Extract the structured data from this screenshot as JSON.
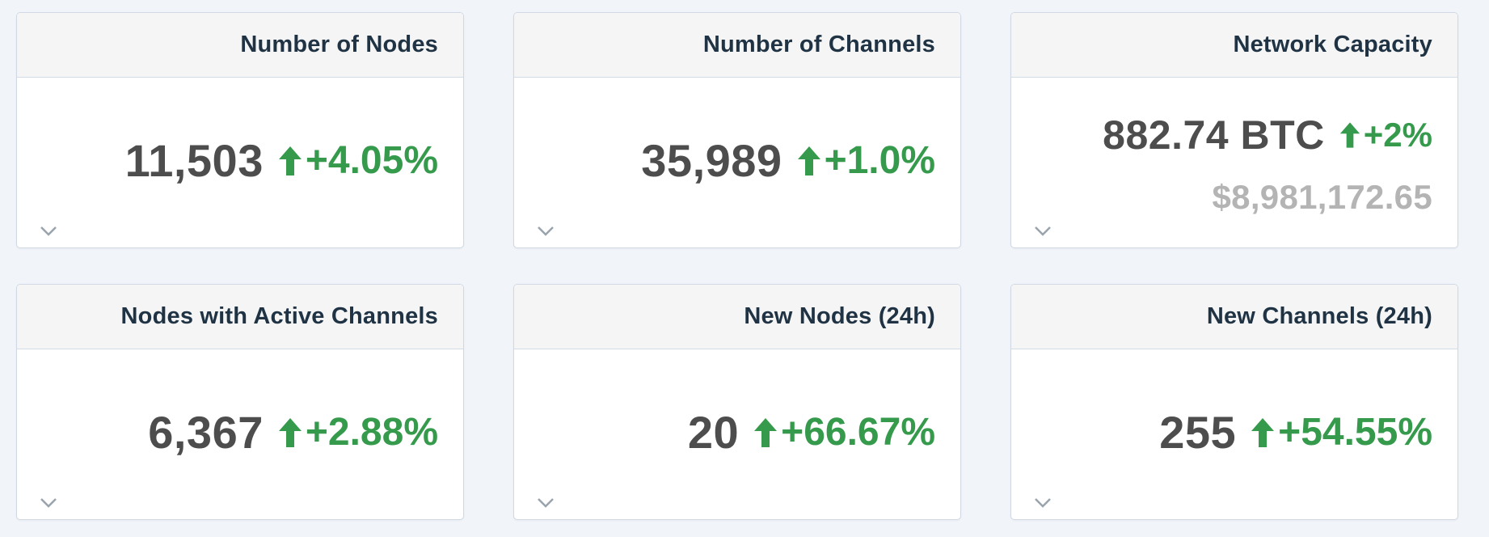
{
  "cards": {
    "nodes": {
      "title": "Number of Nodes",
      "value": "11,503",
      "change": "+4.05%"
    },
    "channels": {
      "title": "Number of Channels",
      "value": "35,989",
      "change": "+1.0%"
    },
    "capacity": {
      "title": "Network Capacity",
      "value": "882.74 BTC",
      "change": "+2%",
      "usd": "$8,981,172.65"
    },
    "active_nodes": {
      "title": "Nodes with Active Channels",
      "value": "6,367",
      "change": "+2.88%"
    },
    "new_nodes": {
      "title": "New Nodes (24h)",
      "value": "20",
      "change": "+66.67%"
    },
    "new_channels": {
      "title": "New Channels (24h)",
      "value": "255",
      "change": "+54.55%"
    }
  },
  "colors": {
    "positive": "#359a4c",
    "value_text": "#4d4d4d",
    "title_text": "#1f3344",
    "secondary_text": "#b4b4b4"
  },
  "icons": {
    "trend": "arrow-up-icon",
    "expand": "chevron-down-icon"
  }
}
